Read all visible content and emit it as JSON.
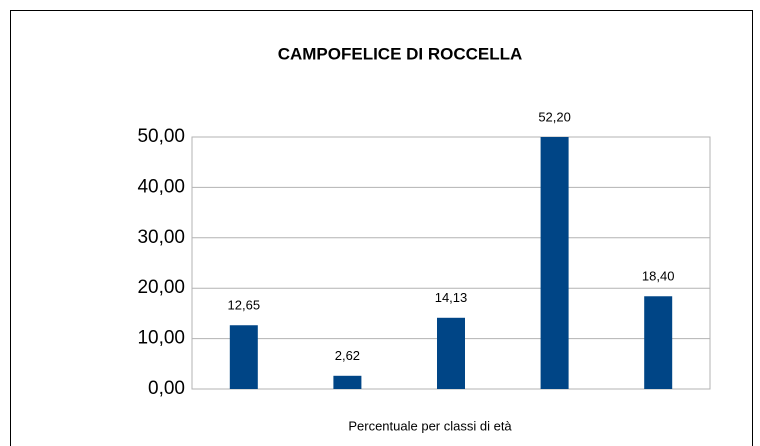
{
  "chart_data": {
    "type": "bar",
    "title": "CAMPOFELICE DI ROCCELLA",
    "x_label": "Percentuale per classi di età",
    "categories": [
      null,
      null,
      null,
      null,
      null
    ],
    "values": [
      12.65,
      2.62,
      14.13,
      52.2,
      18.4
    ],
    "value_labels": [
      "12,65",
      "2,62",
      "14,13",
      "52,20",
      "18,40"
    ],
    "color": "#004586",
    "ylim": [
      0,
      50
    ],
    "yticks": [
      {
        "value": 0,
        "label": "0,00"
      },
      {
        "value": 10,
        "label": "10,00"
      },
      {
        "value": 20,
        "label": "20,00"
      },
      {
        "value": 30,
        "label": "30,00"
      },
      {
        "value": 40,
        "label": "40,00"
      },
      {
        "value": 50,
        "label": "50,00"
      }
    ],
    "grid": true
  }
}
